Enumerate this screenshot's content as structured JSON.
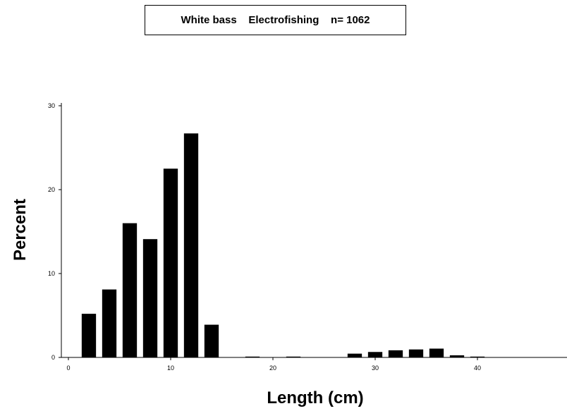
{
  "title_box": {
    "text": "White bass    Electrofishing    n= 1062"
  },
  "chart_data": {
    "type": "bar",
    "title": "White bass    Electrofishing    n= 1062",
    "xlabel": "Length  (cm)",
    "ylabel": "Percent",
    "xlim": [
      0,
      48
    ],
    "ylim": [
      0,
      30
    ],
    "x_ticks": [
      0,
      10,
      20,
      30,
      40
    ],
    "y_ticks": [
      0,
      10,
      20,
      30
    ],
    "bar_width_cm": 1.4,
    "categories": [
      2,
      4,
      6,
      8,
      10,
      12,
      14,
      18,
      22,
      28,
      30,
      32,
      34,
      36,
      38,
      40
    ],
    "values": [
      5.2,
      8.1,
      16.0,
      14.1,
      22.5,
      26.7,
      3.9,
      0.1,
      0.1,
      0.45,
      0.65,
      0.85,
      0.95,
      1.05,
      0.25,
      0.1
    ],
    "color": "#000000",
    "grid": false
  }
}
